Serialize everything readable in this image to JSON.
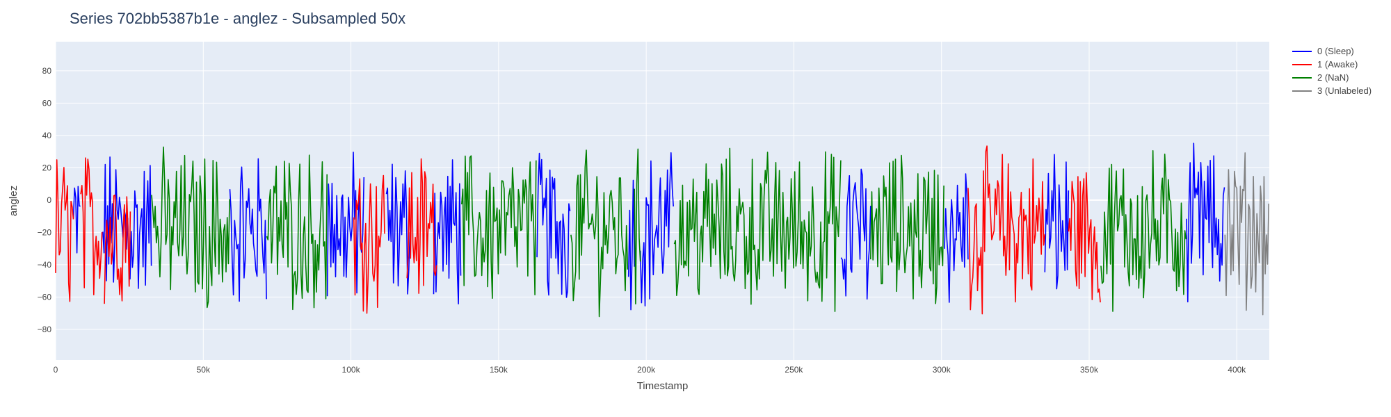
{
  "chart_data": {
    "type": "line",
    "title": "Series 702bb5387b1e - anglez - Subsampled 50x",
    "xlabel": "Timestamp",
    "ylabel": "anglez",
    "xlim": [
      0,
      411000
    ],
    "ylim": [
      -99,
      98
    ],
    "grid": true,
    "legend_position": "top-right",
    "x_ticks": [
      {
        "value": 0,
        "label": "0"
      },
      {
        "value": 50000,
        "label": "50k"
      },
      {
        "value": 100000,
        "label": "100k"
      },
      {
        "value": 150000,
        "label": "150k"
      },
      {
        "value": 200000,
        "label": "200k"
      },
      {
        "value": 250000,
        "label": "250k"
      },
      {
        "value": 300000,
        "label": "300k"
      },
      {
        "value": 350000,
        "label": "350k"
      },
      {
        "value": 400000,
        "label": "400k"
      }
    ],
    "y_ticks": [
      {
        "value": -80,
        "label": "−80"
      },
      {
        "value": -60,
        "label": "−60"
      },
      {
        "value": -40,
        "label": "−40"
      },
      {
        "value": -20,
        "label": "−20"
      },
      {
        "value": 0,
        "label": "0"
      },
      {
        "value": 20,
        "label": "20"
      },
      {
        "value": 40,
        "label": "40"
      },
      {
        "value": 60,
        "label": "60"
      },
      {
        "value": 80,
        "label": "80"
      }
    ],
    "series": [
      {
        "name": "0 (Sleep)",
        "color": "#0000ff",
        "segments": [
          [
            6000,
            8500
          ],
          [
            16000,
            32500
          ],
          [
            59000,
            71500
          ],
          [
            92000,
            104500
          ],
          [
            112000,
            120000
          ],
          [
            128000,
            137500
          ],
          [
            163000,
            174500
          ],
          [
            194000,
            196000
          ],
          [
            198000,
            209500
          ],
          [
            266000,
            276000
          ],
          [
            301000,
            309000
          ],
          [
            335000,
            343000
          ],
          [
            383000,
            396000
          ]
        ]
      },
      {
        "name": "1 (Awake)",
        "color": "#ff0000",
        "segments": [
          [
            0,
            6000
          ],
          [
            8500,
            16000
          ],
          [
            16500,
            25500
          ],
          [
            101000,
            111500
          ],
          [
            119000,
            129000
          ],
          [
            309000,
            335000
          ],
          [
            343000,
            354000
          ]
        ]
      },
      {
        "name": "2 (NaN)",
        "color": "#008000",
        "segments": [
          [
            32500,
            59000
          ],
          [
            71500,
            92000
          ],
          [
            137500,
            163000
          ],
          [
            174500,
            194000
          ],
          [
            196000,
            198000
          ],
          [
            209500,
            266000
          ],
          [
            276000,
            301000
          ],
          [
            354000,
            383000
          ]
        ]
      },
      {
        "name": "3 (Unlabeled)",
        "color": "#808080",
        "segments": [
          [
            396000,
            411000
          ]
        ]
      }
    ]
  }
}
